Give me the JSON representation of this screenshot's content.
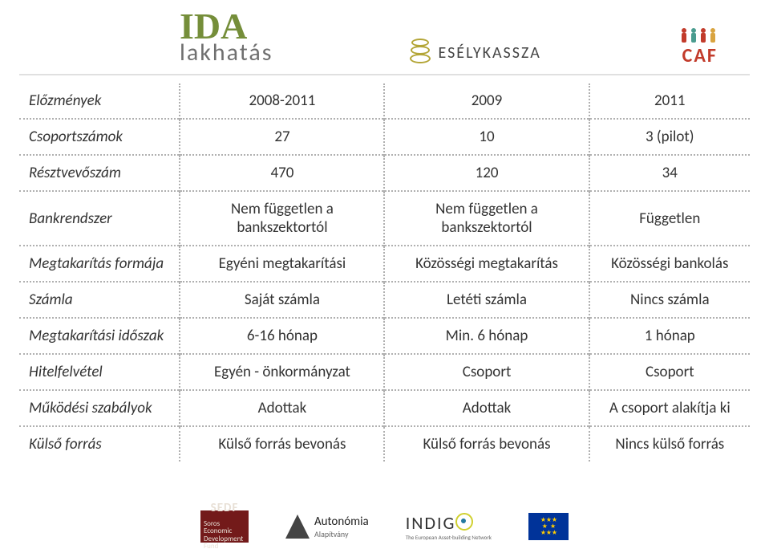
{
  "header": {
    "ida_top": "IDA",
    "ida_bot": "lakhatás",
    "esely": "ESÉLYKASSZA",
    "caf": "CAF"
  },
  "table": {
    "rows": [
      {
        "label": "Előzmények",
        "c1": "2008-2011",
        "c2": "2009",
        "c3": "2011"
      },
      {
        "label": "Csoportszámok",
        "c1": "27",
        "c2": "10",
        "c3": "3 (pilot)"
      },
      {
        "label": "Résztvevőszám",
        "c1": "470",
        "c2": "120",
        "c3": "34"
      },
      {
        "label": "Bankrendszer",
        "c1": "Nem független a bankszektortól",
        "c2": "Nem független a bankszektortól",
        "c3": "Független"
      },
      {
        "label": "Megtakarítás formája",
        "c1": "Egyéni megtakarítási",
        "c2": "Közösségi megtakarítás",
        "c3": "Közösségi bankolás"
      },
      {
        "label": "Számla",
        "c1": "Saját számla",
        "c2": "Letéti számla",
        "c3": "Nincs számla"
      },
      {
        "label": "Megtakarítási időszak",
        "c1": "6-16 hónap",
        "c2": "Min. 6 hónap",
        "c3": "1 hónap"
      },
      {
        "label": "Hitelfelvétel",
        "c1": "Egyén - önkormányzat",
        "c2": "Csoport",
        "c3": "Csoport"
      },
      {
        "label": "Működési szabályok",
        "c1": "Adottak",
        "c2": "Adottak",
        "c3": "A csoport alakítja ki"
      },
      {
        "label": "Külső forrás",
        "c1": "Külső forrás bevonás",
        "c2": "Külső forrás bevonás",
        "c3": "Nincs külső forrás"
      }
    ]
  },
  "footer": {
    "sedf_big": "SEDF",
    "sedf_sub": "Soros Economic Development Fund",
    "autonomia": "Autonómia",
    "autonomia_sub": "Alapítvány",
    "indigo": "INDIG",
    "indigo_sub": "The European Asset-building Network"
  },
  "colors": {
    "ida_green": "#758e3a",
    "caf_red": "#c23b2b",
    "dotted": "#b0b0b0",
    "eu_blue": "#003399",
    "eu_gold": "#ffcc00"
  }
}
